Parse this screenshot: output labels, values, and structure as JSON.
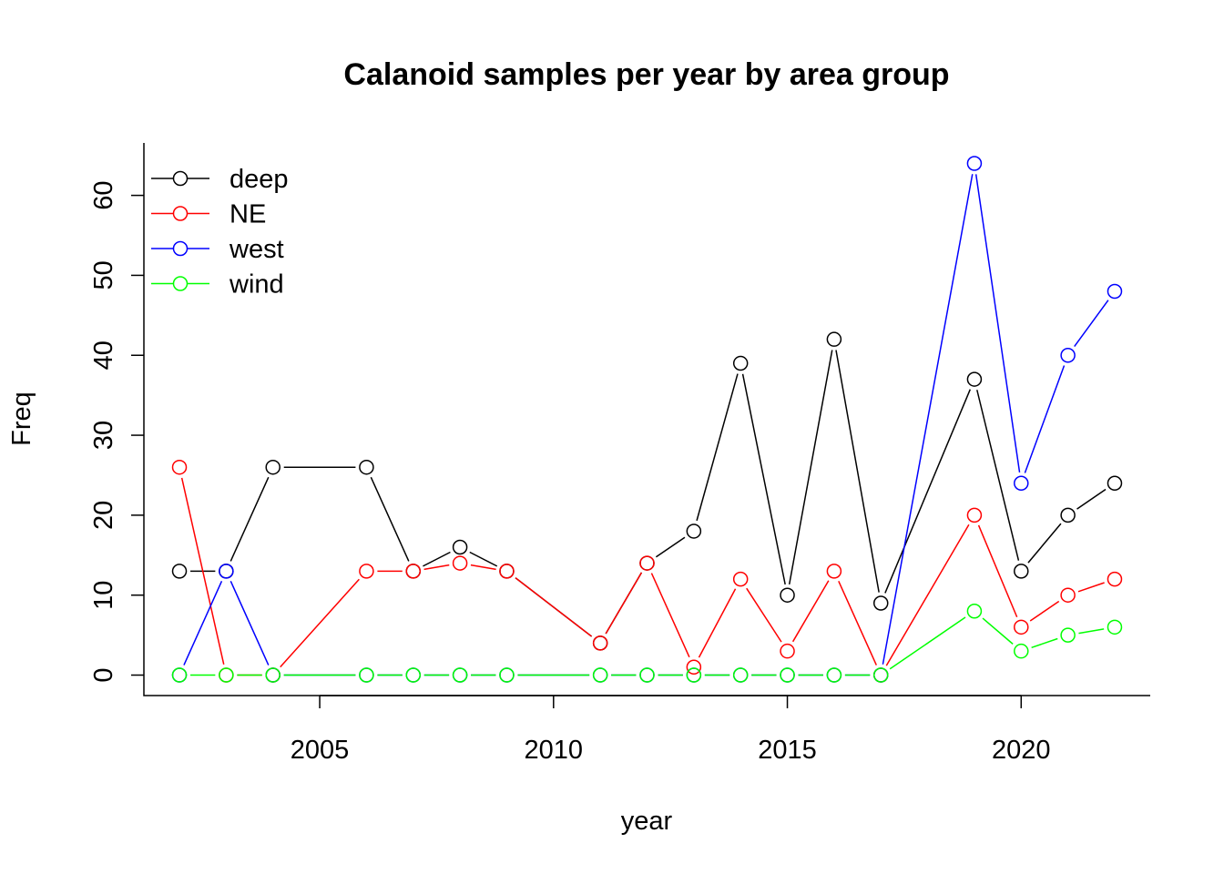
{
  "chart_data": {
    "type": "line",
    "title": "Calanoid samples per year by area group",
    "xlabel": "year",
    "ylabel": "Freq",
    "xlim": [
      2001.24,
      2022.76
    ],
    "ylim": [
      -2.56,
      66.56
    ],
    "x_ticks": [
      2005,
      2010,
      2015,
      2020
    ],
    "y_ticks": [
      0,
      10,
      20,
      30,
      40,
      50,
      60
    ],
    "grid": false,
    "legend_position": "top-left",
    "marker": "open-circle",
    "years": [
      2002,
      2003,
      2004,
      2006,
      2007,
      2008,
      2009,
      2011,
      2012,
      2013,
      2014,
      2015,
      2016,
      2017,
      2019,
      2020,
      2021,
      2022
    ],
    "series": [
      {
        "name": "deep",
        "color": "#000000",
        "values": [
          13,
          13,
          26,
          26,
          13,
          16,
          13,
          4,
          14,
          18,
          39,
          10,
          42,
          9,
          37,
          13,
          20,
          24
        ]
      },
      {
        "name": "NE",
        "color": "#ff0000",
        "values": [
          26,
          0,
          0,
          13,
          13,
          14,
          13,
          4,
          14,
          1,
          12,
          3,
          13,
          0,
          20,
          6,
          10,
          12
        ]
      },
      {
        "name": "west",
        "color": "#0000ff",
        "values": [
          0,
          13,
          0,
          0,
          0,
          0,
          0,
          0,
          0,
          0,
          0,
          0,
          0,
          0,
          64,
          24,
          40,
          48
        ]
      },
      {
        "name": "wind",
        "color": "#00ff00",
        "values": [
          0,
          0,
          0,
          0,
          0,
          0,
          0,
          0,
          0,
          0,
          0,
          0,
          0,
          0,
          8,
          3,
          5,
          6
        ]
      }
    ]
  }
}
